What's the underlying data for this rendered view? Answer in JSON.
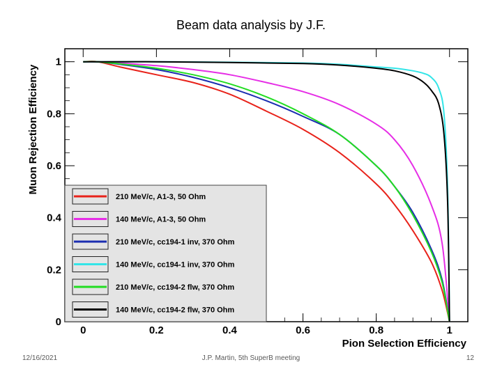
{
  "slide": {
    "title": "Beam data analysis by J.F.",
    "footer_date": "12/16/2021",
    "footer_center": "J.P. Martin, 5th SuperB meeting",
    "page_number": "12"
  },
  "chart_data": {
    "type": "line",
    "xlabel": "Pion Selection Efficiency",
    "ylabel": "Muon Rejection Efficiency",
    "xlim": [
      -0.05,
      1.05
    ],
    "ylim": [
      0,
      1.05
    ],
    "xticks": [
      0,
      0.2,
      0.4,
      0.6,
      0.8,
      1
    ],
    "xtick_labels": [
      "0",
      "0.2",
      "0.4",
      "0.6",
      "0.8",
      "1"
    ],
    "yticks": [
      0,
      0.2,
      0.4,
      0.6,
      0.8,
      1
    ],
    "ytick_labels": [
      "0",
      "0.2",
      "0.4",
      "0.6",
      "0.8",
      "1"
    ],
    "grid": false,
    "legend_position": "lower-left",
    "series": [
      {
        "name": "210 MeV/c, A1-3, 50 Ohm",
        "color": "#e8221a",
        "x": [
          0,
          0.04,
          0.1,
          0.2,
          0.3,
          0.4,
          0.5,
          0.6,
          0.7,
          0.8,
          0.85,
          0.9,
          0.95,
          0.98,
          1.0
        ],
        "y": [
          1.0,
          1.0,
          0.98,
          0.95,
          0.92,
          0.875,
          0.81,
          0.74,
          0.65,
          0.53,
          0.45,
          0.35,
          0.23,
          0.12,
          0.0
        ]
      },
      {
        "name": "140 MeV/c, A1-3, 50 Ohm",
        "color": "#e62ee6",
        "x": [
          0,
          0.04,
          0.1,
          0.2,
          0.3,
          0.4,
          0.5,
          0.6,
          0.7,
          0.8,
          0.85,
          0.9,
          0.95,
          0.98,
          1.0
        ],
        "y": [
          1.0,
          1.0,
          0.995,
          0.985,
          0.97,
          0.95,
          0.92,
          0.885,
          0.835,
          0.76,
          0.7,
          0.6,
          0.45,
          0.3,
          0.0
        ]
      },
      {
        "name": "210 MeV/c, cc194-1 inv, 370 Ohm",
        "color": "#1a2db0",
        "x": [
          0,
          0.04,
          0.1,
          0.2,
          0.3,
          0.4,
          0.5,
          0.6,
          0.7,
          0.8,
          0.85,
          0.9,
          0.95,
          0.98,
          1.0
        ],
        "y": [
          1.0,
          1.0,
          0.99,
          0.97,
          0.94,
          0.9,
          0.85,
          0.79,
          0.72,
          0.6,
          0.52,
          0.42,
          0.28,
          0.16,
          0.0
        ]
      },
      {
        "name": "140 MeV/c, cc194-1 inv, 370 Ohm",
        "color": "#33e5e8",
        "x": [
          0,
          0.04,
          0.2,
          0.4,
          0.6,
          0.7,
          0.8,
          0.85,
          0.9,
          0.93,
          0.95,
          0.97,
          0.985,
          0.995,
          1.0
        ],
        "y": [
          1.0,
          1.0,
          1.0,
          0.998,
          0.995,
          0.99,
          0.98,
          0.975,
          0.965,
          0.955,
          0.94,
          0.9,
          0.8,
          0.5,
          0.0
        ]
      },
      {
        "name": "210 MeV/c, cc194-2 flw, 370 Ohm",
        "color": "#22dd22",
        "x": [
          0,
          0.04,
          0.1,
          0.2,
          0.3,
          0.4,
          0.5,
          0.6,
          0.7,
          0.8,
          0.85,
          0.9,
          0.95,
          0.98,
          1.0
        ],
        "y": [
          1.0,
          1.0,
          0.992,
          0.975,
          0.95,
          0.915,
          0.865,
          0.8,
          0.72,
          0.6,
          0.52,
          0.41,
          0.27,
          0.15,
          0.0
        ]
      },
      {
        "name": "140 MeV/c, cc194-2 flw, 370 Ohm",
        "color": "#000000",
        "x": [
          0,
          0.04,
          0.2,
          0.4,
          0.6,
          0.7,
          0.8,
          0.85,
          0.9,
          0.93,
          0.95,
          0.97,
          0.985,
          0.995,
          1.0
        ],
        "y": [
          1.0,
          1.0,
          1.0,
          0.997,
          0.993,
          0.987,
          0.975,
          0.965,
          0.945,
          0.92,
          0.89,
          0.84,
          0.72,
          0.45,
          0.0
        ]
      }
    ]
  }
}
